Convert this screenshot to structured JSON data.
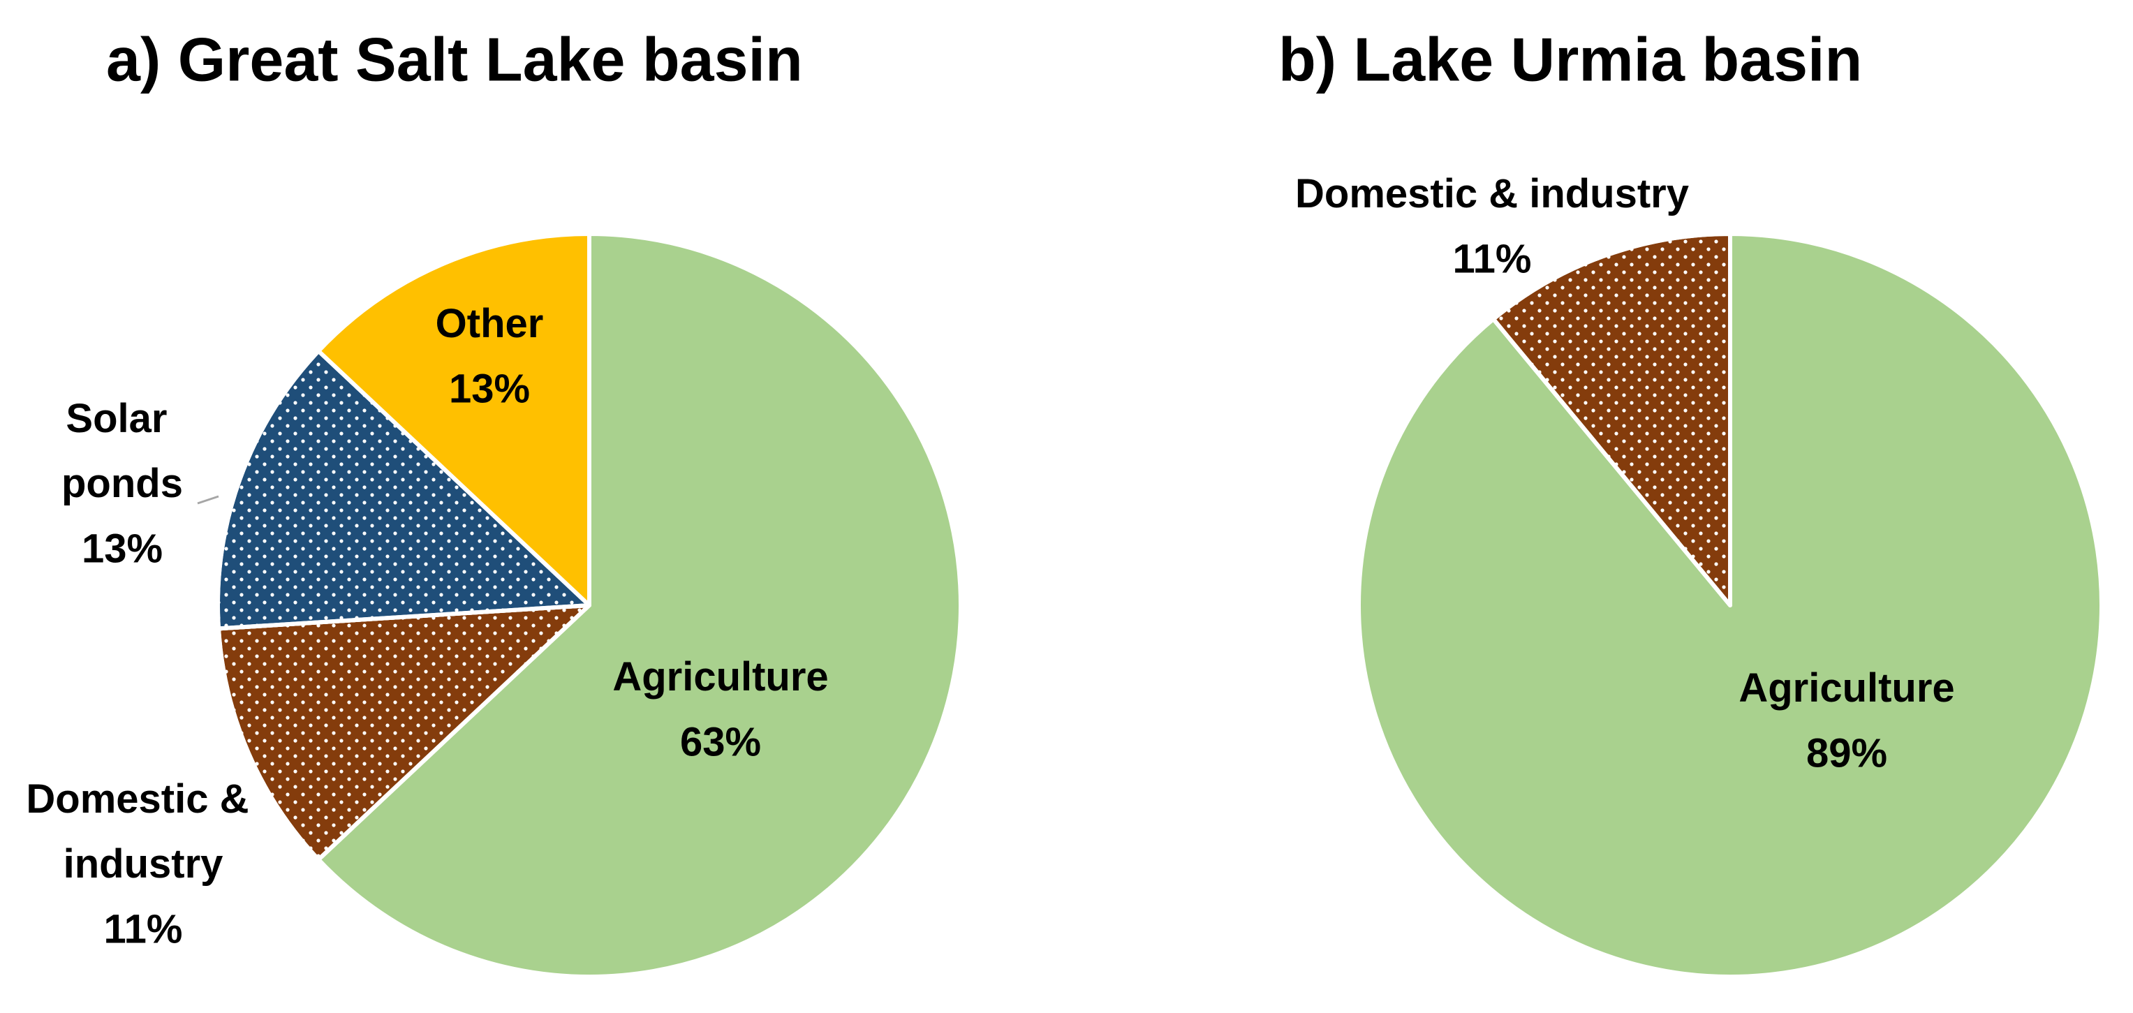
{
  "chart_data": [
    {
      "type": "pie",
      "title": "a) Great Salt Lake basin",
      "categories": [
        "Agriculture",
        "Domestic & industry",
        "Solar ponds",
        "Other"
      ],
      "values": [
        63,
        11,
        13,
        13
      ],
      "value_labels": [
        "63%",
        "11%",
        "13%",
        "13%"
      ],
      "colors": [
        "#a9d18e",
        "#843c0c",
        "#1f4e79",
        "#ffc000"
      ],
      "patterns": [
        "solid",
        "dotted",
        "dotted",
        "solid"
      ]
    },
    {
      "type": "pie",
      "title": "b) Lake Urmia basin",
      "categories": [
        "Agriculture",
        "Domestic & industry"
      ],
      "values": [
        89,
        11
      ],
      "value_labels": [
        "89%",
        "11%"
      ],
      "colors": [
        "#a9d18e",
        "#843c0c"
      ],
      "patterns": [
        "solid",
        "dotted"
      ]
    }
  ]
}
